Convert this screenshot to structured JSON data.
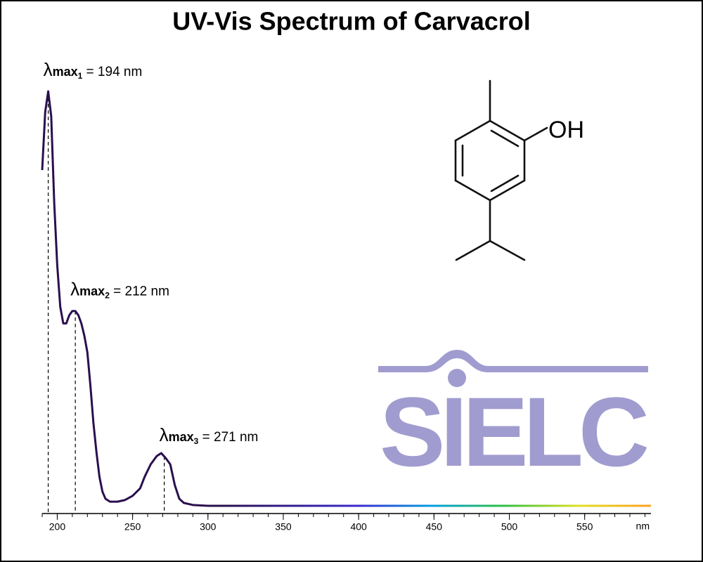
{
  "chart_data": {
    "type": "line",
    "title": "UV-Vis Spectrum of Carvacrol",
    "x_unit": "nm",
    "xlim": [
      190,
      594
    ],
    "ylim": [
      0,
      1
    ],
    "xticks": [
      200,
      250,
      300,
      350,
      400,
      450,
      500,
      550
    ],
    "xminorticks": [
      190,
      200,
      210,
      220,
      230,
      240,
      250,
      260,
      270,
      280,
      290,
      300,
      310,
      320,
      330,
      340,
      350,
      360,
      370,
      380,
      390,
      400,
      410,
      420,
      430,
      440,
      450,
      460,
      470,
      480,
      490,
      500,
      510,
      520,
      530,
      540,
      550,
      560,
      570,
      580,
      590
    ],
    "grid": false,
    "series": [
      {
        "color": "#2a0f4f",
        "x": [
          190,
          192,
          194,
          196,
          198,
          200,
          202,
          204,
          206,
          208,
          210,
          212,
          214,
          216,
          218,
          220,
          222,
          224,
          226,
          228,
          230,
          232,
          235,
          240,
          245,
          250,
          255,
          258,
          262,
          266,
          269,
          272,
          275,
          278,
          281,
          284,
          290,
          300,
          350,
          400,
          450,
          500,
          550,
          594
        ],
        "values": [
          0.81,
          0.95,
          1.0,
          0.94,
          0.73,
          0.58,
          0.48,
          0.44,
          0.44,
          0.46,
          0.47,
          0.47,
          0.46,
          0.44,
          0.41,
          0.37,
          0.29,
          0.2,
          0.13,
          0.07,
          0.034,
          0.017,
          0.01,
          0.01,
          0.014,
          0.024,
          0.042,
          0.07,
          0.1,
          0.12,
          0.127,
          0.115,
          0.1,
          0.05,
          0.017,
          0.007,
          0.002,
          0,
          0,
          0,
          0,
          0,
          0,
          0
        ]
      }
    ],
    "peaks": [
      {
        "symbol": "λ",
        "sub": "max",
        "index": "1",
        "text": " = 194 nm",
        "x": 194
      },
      {
        "symbol": "λ",
        "sub": "max",
        "index": "2",
        "text": " = 212 nm",
        "x": 212
      },
      {
        "symbol": "λ",
        "sub": "max",
        "index": "3",
        "text": " = 271 nm",
        "x": 271
      }
    ],
    "structure_label": "OH",
    "logo": "SIELC"
  }
}
